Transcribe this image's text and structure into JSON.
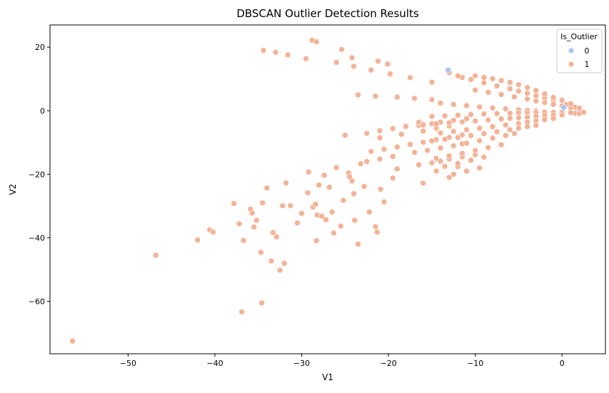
{
  "chart_data": {
    "type": "scatter",
    "title": "DBSCAN Outlier Detection Results",
    "xlabel": "V1",
    "ylabel": "V2",
    "xlim": [
      -59,
      5
    ],
    "ylim": [
      -76.5,
      27
    ],
    "xticks": [
      -50,
      -40,
      -30,
      -20,
      -10,
      0
    ],
    "yticks": [
      -60,
      -40,
      -20,
      0,
      20
    ],
    "grid": false,
    "legend": {
      "title": "Is_Outlier",
      "placement": "top-right",
      "entries": [
        {
          "label": "0",
          "color": "#a9c4f4"
        },
        {
          "label": "1",
          "color": "#f3b396"
        }
      ]
    },
    "series": [
      {
        "name": "1",
        "color": "#f3b396",
        "x": [
          -56.4,
          -46.8,
          -42.0,
          -40.6,
          -40.2,
          -37.8,
          -37.2,
          -36.7,
          -36.9,
          -35.9,
          -35.7,
          -35.5,
          -35.2,
          -34.7,
          -34.6,
          -34.5,
          -34.0,
          -33.5,
          -33.3,
          -32.9,
          -32.5,
          -32.2,
          -32.0,
          -31.8,
          -31.3,
          -30.5,
          -30.0,
          -29.3,
          -29.2,
          -28.7,
          -28.4,
          -28.2,
          -28.3,
          -28.0,
          -27.7,
          -27.4,
          -27.2,
          -26.8,
          -26.5,
          -26.3,
          -26.0,
          -25.5,
          -25.2,
          -24.6,
          -24.2,
          -24.0,
          -23.9,
          -23.5,
          -23.2,
          -22.8,
          -22.2,
          -21.5,
          -21.3,
          -20.9,
          -20.5,
          -19.5,
          -34.4,
          -33.0,
          -31.6,
          -29.5,
          -26.0,
          -24.0,
          -22.0,
          -19.8,
          -17.5,
          -15.0,
          -23.5,
          -21.5,
          -19.0,
          -17.0,
          -15.0,
          -19.5,
          -18.0,
          -16.5,
          -15.0,
          -16.5,
          -25.0,
          -22.5,
          -21.0,
          -19.5,
          -18.0,
          -16.0,
          -14.0,
          -12.5,
          -11.0,
          -21.0,
          -18.5,
          -16.0,
          -14.5,
          -13.0,
          -22.0,
          -20.5,
          -19.0,
          -17.5,
          -16.0,
          -14.5,
          -13.0,
          -11.5,
          -22.5,
          -21.0,
          -19.5,
          -17.0,
          -14.0,
          -11.5,
          -14.5,
          -12.0,
          -24.5,
          -19.0,
          -16.5,
          -15.0,
          -14.0,
          -13.0,
          -11.5,
          -10.0,
          -16.0,
          -13.0,
          -28.8,
          -28.3,
          -25.4,
          -24.2,
          -21.2,
          -20.1,
          -13.2,
          -13.0,
          -11.5,
          -12.0,
          -10.5,
          -9.0,
          -7.5,
          -6.0,
          -5.0,
          -4.0,
          -3.0,
          -2.0,
          -1.0,
          0.5,
          1.5,
          2.0,
          -10.0,
          -8.5,
          -7.0,
          -5.5,
          -4.0,
          -3.0,
          -2.0,
          -1.0,
          0.0,
          1.0,
          -14.0,
          -12.5,
          -11.0,
          -9.5,
          -8.0,
          -6.5,
          -5.0,
          -4.0,
          -3.0,
          -2.0,
          -1.0,
          0.0,
          1.5,
          -15.0,
          -13.5,
          -12.0,
          -10.5,
          -9.0,
          -7.5,
          -6.0,
          -5.0,
          -4.0,
          -3.0,
          -2.0,
          -1.0,
          0.0,
          1.0,
          2.0,
          -16.0,
          -14.5,
          -13.0,
          -11.5,
          -10.0,
          -8.5,
          -7.0,
          -6.0,
          -5.0,
          -4.0,
          -3.0,
          -2.0,
          -1.0,
          0.0,
          -14.0,
          -12.5,
          -11.0,
          -9.5,
          -8.0,
          -6.5,
          -5.0,
          -4.0,
          -3.0,
          -2.0,
          -1.0,
          -15.0,
          -13.5,
          -12.0,
          -10.5,
          -9.0,
          -7.5,
          -6.0,
          -5.0,
          -4.0,
          -3.0,
          -15.5,
          -14.0,
          -12.5,
          -11.0,
          -9.5,
          -8.0,
          -6.5,
          -5.5,
          -14.5,
          -13.0,
          -11.5,
          -10.0,
          -8.5,
          -7.0,
          -13.5,
          -12.0,
          -10.5,
          -9.0,
          -12.5,
          -11.0,
          -9.5,
          2.5,
          2.0,
          1.0,
          0.0,
          -1.0,
          -2.0,
          -3.0,
          -4.0,
          -5.0,
          -6.0,
          -7.0,
          -8.0,
          -9.0,
          -10.0
        ],
        "y": [
          -72.5,
          -45.5,
          -40.7,
          -37.5,
          -38.2,
          -29.2,
          -35.6,
          -40.8,
          -63.3,
          -31.0,
          -32.2,
          -36.6,
          -34.5,
          -44.6,
          -60.5,
          -29.0,
          -24.3,
          -47.3,
          -38.3,
          -39.7,
          -50.2,
          -29.9,
          -48.0,
          -22.7,
          -29.9,
          -35.3,
          -32.3,
          -25.8,
          -19.3,
          -30.3,
          -29.4,
          -32.8,
          -40.9,
          -23.4,
          -33.2,
          -20.3,
          -34.3,
          -24.1,
          -31.9,
          -38.5,
          -17.9,
          -36.3,
          -28.2,
          -19.6,
          -22.1,
          -26.1,
          -34.5,
          -42.0,
          -16.7,
          -23.8,
          -31.9,
          -36.5,
          -38.2,
          -24.7,
          -28.7,
          -21.2,
          19.0,
          18.4,
          17.6,
          16.4,
          15.2,
          14.0,
          12.8,
          11.6,
          10.4,
          9.0,
          5.0,
          4.6,
          4.3,
          3.9,
          3.5,
          -5.6,
          -5.1,
          -4.6,
          -4.1,
          -3.6,
          -7.7,
          -7.1,
          -6.3,
          -5.6,
          -4.9,
          -4.2,
          -3.6,
          -3.0,
          -2.5,
          -8.5,
          -7.4,
          -6.4,
          -5.5,
          -4.8,
          -12.8,
          -12.1,
          -11.4,
          -10.6,
          -9.9,
          -9.1,
          -8.4,
          -7.6,
          -16.0,
          -15.2,
          -14.4,
          -13.1,
          -11.6,
          -10.4,
          -19.0,
          -17.6,
          -20.7,
          -18.3,
          -17.0,
          -16.4,
          -15.9,
          -15.2,
          -14.5,
          -13.8,
          -22.8,
          -21.0,
          22.2,
          21.7,
          19.3,
          16.7,
          15.6,
          14.7,
          12.8,
          12.0,
          10.5,
          11.0,
          9.8,
          8.8,
          7.8,
          6.9,
          6.2,
          5.5,
          4.8,
          4.1,
          3.3,
          2.0,
          1.1,
          0.3,
          6.5,
          5.8,
          5.1,
          4.4,
          3.7,
          3.1,
          2.6,
          2.0,
          1.5,
          1.0,
          2.4,
          2.0,
          1.6,
          1.2,
          0.9,
          0.6,
          0.3,
          0.1,
          -0.1,
          -0.3,
          -0.4,
          -0.5,
          -0.8,
          -1.8,
          -1.6,
          -1.4,
          -1.2,
          -1.0,
          -0.9,
          -0.8,
          -0.7,
          -0.6,
          -0.6,
          -0.5,
          -0.5,
          -0.5,
          -0.6,
          -0.9,
          -4.5,
          -4.1,
          -3.8,
          -3.5,
          -3.2,
          -2.9,
          -2.6,
          -2.4,
          -2.2,
          -2.0,
          -1.8,
          -1.6,
          -1.4,
          -1.3,
          -7.0,
          -6.5,
          -6.0,
          -5.5,
          -5.0,
          -4.5,
          -4.0,
          -3.6,
          -3.2,
          -2.8,
          -2.4,
          -9.5,
          -9.0,
          -8.4,
          -7.8,
          -7.2,
          -6.6,
          -6.0,
          -5.5,
          -5.0,
          -4.6,
          -12.5,
          -11.8,
          -11.0,
          -10.2,
          -9.4,
          -8.6,
          -7.8,
          -7.2,
          -15.0,
          -14.2,
          -13.4,
          -12.5,
          -11.6,
          -10.7,
          -17.5,
          -16.6,
          -15.6,
          -14.6,
          -20.0,
          -19.0,
          -18.0,
          -0.5,
          0.8,
          2.2,
          3.3,
          4.2,
          5.3,
          6.4,
          7.3,
          8.2,
          8.9,
          9.5,
          10.1,
          10.5,
          11.0
        ]
      },
      {
        "name": "0",
        "color": "#a9c4f4",
        "x": [
          -13.1,
          0.2
        ],
        "y": [
          12.8,
          1.0
        ]
      }
    ]
  }
}
